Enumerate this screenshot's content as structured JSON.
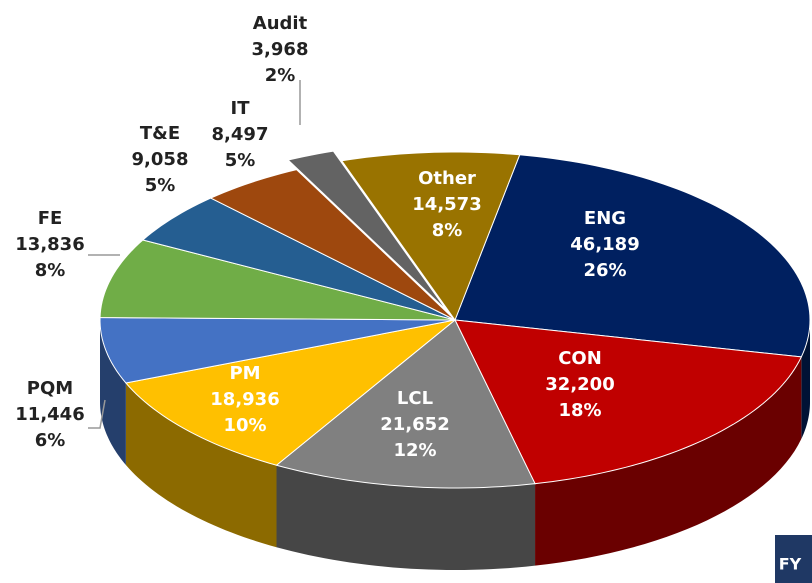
{
  "chart_data": {
    "type": "pie",
    "categories": [
      "ENG",
      "CON",
      "LCL",
      "PM",
      "PQM",
      "FE",
      "T&E",
      "IT",
      "Audit",
      "Other"
    ],
    "values": [
      46189,
      32200,
      21652,
      18936,
      11446,
      13836,
      9058,
      8497,
      3968,
      14573
    ],
    "value_labels": [
      "46,189",
      "32,200",
      "21,652",
      "18,936",
      "11,446",
      "13,836",
      "9,058",
      "8,497",
      "3,968",
      "14,573"
    ],
    "percents": [
      26,
      18,
      12,
      10,
      6,
      8,
      5,
      5,
      2,
      8
    ],
    "percent_labels": [
      "26%",
      "18%",
      "12%",
      "10%",
      "6%",
      "8%",
      "5%",
      "5%",
      "2%",
      "8%"
    ],
    "colors": [
      "#002060",
      "#c00000",
      "#808080",
      "#ffc000",
      "#4472c4",
      "#70ad47",
      "#255e91",
      "#9e480e",
      "#636363",
      "#997300"
    ],
    "exploded": [
      "Audit"
    ],
    "footer_label": "FY"
  }
}
